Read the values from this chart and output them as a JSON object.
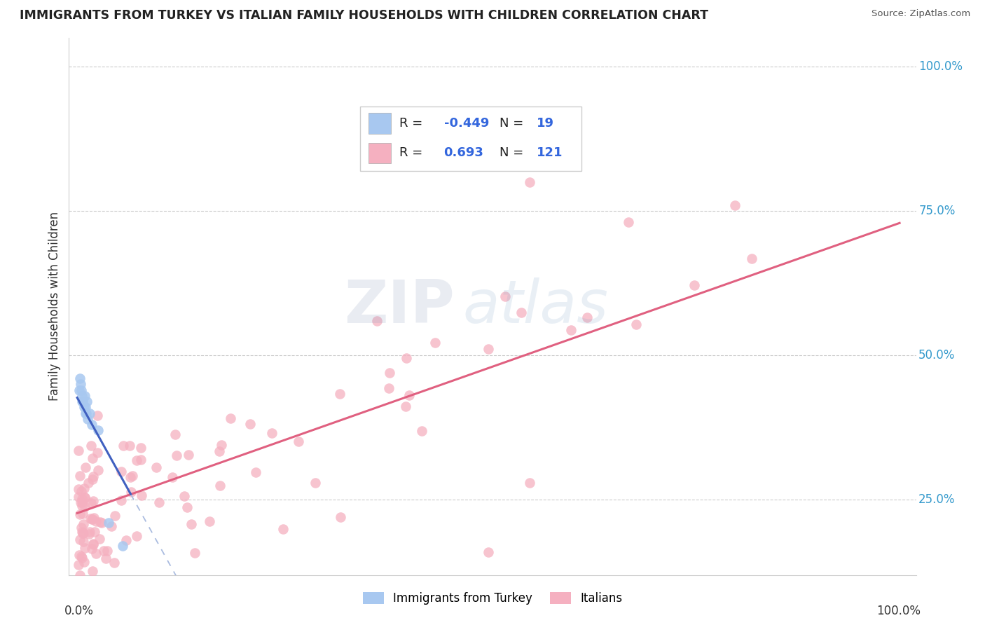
{
  "title": "IMMIGRANTS FROM TURKEY VS ITALIAN FAMILY HOUSEHOLDS WITH CHILDREN CORRELATION CHART",
  "source": "Source: ZipAtlas.com",
  "ylabel": "Family Households with Children",
  "y_ticks": [
    0.25,
    0.5,
    0.75,
    1.0
  ],
  "y_tick_labels": [
    "25.0%",
    "50.0%",
    "75.0%",
    "100.0%"
  ],
  "legend_blue_r": "-0.449",
  "legend_blue_n": "19",
  "legend_pink_r": "0.693",
  "legend_pink_n": "121",
  "blue_color": "#A8C8F0",
  "pink_color": "#F5B0C0",
  "blue_line_color": "#4060C0",
  "pink_line_color": "#E06080",
  "background_color": "#FFFFFF",
  "xlim": [
    0.0,
    1.0
  ],
  "ylim": [
    0.12,
    1.05
  ]
}
